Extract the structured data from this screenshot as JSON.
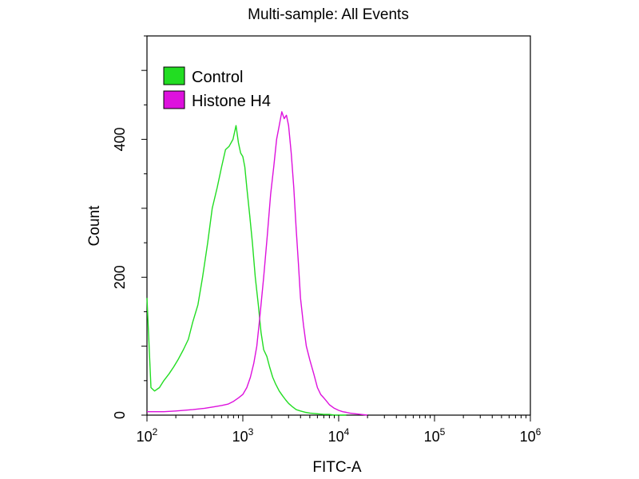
{
  "chart_data": {
    "type": "line",
    "title": "Multi-sample: All Events",
    "xlabel": "FITC-A",
    "ylabel": "Count",
    "x_scale": "log",
    "xlim": [
      100,
      1000000
    ],
    "ylim": [
      0,
      550
    ],
    "grid": false,
    "legend_position": "top-left",
    "x_ticks": [
      {
        "base": "10",
        "exp": "2",
        "value": 100
      },
      {
        "base": "10",
        "exp": "3",
        "value": 1000
      },
      {
        "base": "10",
        "exp": "4",
        "value": 10000
      },
      {
        "base": "10",
        "exp": "5",
        "value": 100000
      },
      {
        "base": "10",
        "exp": "6",
        "value": 1000000
      }
    ],
    "y_ticks": [
      {
        "label": "0",
        "value": 0
      },
      {
        "label": "200",
        "value": 200
      },
      {
        "label": "400",
        "value": 400
      }
    ],
    "series": [
      {
        "name": "Control",
        "color": "#22dd22",
        "x": [
          100,
          110,
          120,
          135,
          150,
          170,
          190,
          210,
          240,
          270,
          300,
          340,
          380,
          430,
          480,
          540,
          600,
          660,
          720,
          790,
          850,
          900,
          950,
          1000,
          1050,
          1100,
          1180,
          1260,
          1350,
          1450,
          1550,
          1650,
          1780,
          1900,
          2050,
          2200,
          2400,
          2600,
          2800,
          3000,
          3300,
          3600,
          4000,
          4500,
          5000,
          6000,
          7000,
          8000,
          9000,
          10000,
          12000
        ],
        "y": [
          170,
          40,
          35,
          40,
          50,
          60,
          70,
          80,
          95,
          110,
          135,
          160,
          200,
          250,
          300,
          330,
          360,
          385,
          390,
          400,
          420,
          395,
          380,
          375,
          360,
          330,
          290,
          250,
          200,
          160,
          120,
          95,
          85,
          70,
          55,
          45,
          35,
          28,
          22,
          17,
          12,
          8,
          6,
          4,
          3,
          2,
          1,
          1,
          0,
          0,
          0
        ]
      },
      {
        "name": "Histone H4",
        "color": "#dd11dd",
        "x": [
          100,
          150,
          200,
          300,
          400,
          500,
          600,
          700,
          800,
          900,
          1000,
          1100,
          1200,
          1300,
          1400,
          1500,
          1650,
          1800,
          1950,
          2100,
          2250,
          2400,
          2550,
          2700,
          2850,
          3000,
          3200,
          3400,
          3600,
          3800,
          4000,
          4300,
          4600,
          5000,
          5500,
          6000,
          6500,
          7000,
          7500,
          8000,
          9000,
          10000,
          11000,
          12000,
          13000,
          15000,
          17000,
          20000
        ],
        "y": [
          5,
          5,
          6,
          8,
          10,
          12,
          14,
          16,
          20,
          25,
          30,
          40,
          55,
          75,
          100,
          140,
          200,
          260,
          320,
          360,
          400,
          420,
          440,
          430,
          435,
          420,
          380,
          330,
          270,
          220,
          170,
          130,
          100,
          80,
          60,
          40,
          30,
          25,
          20,
          15,
          10,
          7,
          5,
          4,
          3,
          2,
          1,
          0
        ]
      }
    ]
  }
}
